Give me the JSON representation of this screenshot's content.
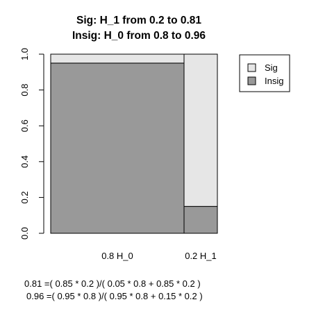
{
  "chart_data": {
    "type": "bar",
    "subtype": "mosaic",
    "title_lines": [
      "Sig: H_1 from 0.2 to 0.81",
      "Insig: H_0 from 0.8 to 0.96"
    ],
    "categories": [
      "0.8 H_0",
      "0.2 H_1"
    ],
    "category_widths": [
      0.8,
      0.2
    ],
    "series": [
      {
        "name": "Insig",
        "values": [
          0.95,
          0.15
        ]
      },
      {
        "name": "Sig",
        "values": [
          0.05,
          0.85
        ]
      }
    ],
    "ylim": [
      0,
      1
    ],
    "yticks": [
      "0.0",
      "0.2",
      "0.4",
      "0.6",
      "0.8",
      "1.0"
    ],
    "xlabel": "",
    "ylabel": "",
    "legend": {
      "placement": "top-right",
      "entries": [
        "Sig",
        "Insig"
      ]
    },
    "colors": {
      "Sig": "#e6e6e6",
      "Insig": "#999999"
    },
    "grid": false,
    "formulas": [
      "0.81 =( 0.85 * 0.2 )/( 0.05 * 0.8 + 0.85 * 0.2 )",
      "0.96 =( 0.95 * 0.8 )/( 0.95 * 0.8 + 0.15 * 0.2 )"
    ]
  }
}
